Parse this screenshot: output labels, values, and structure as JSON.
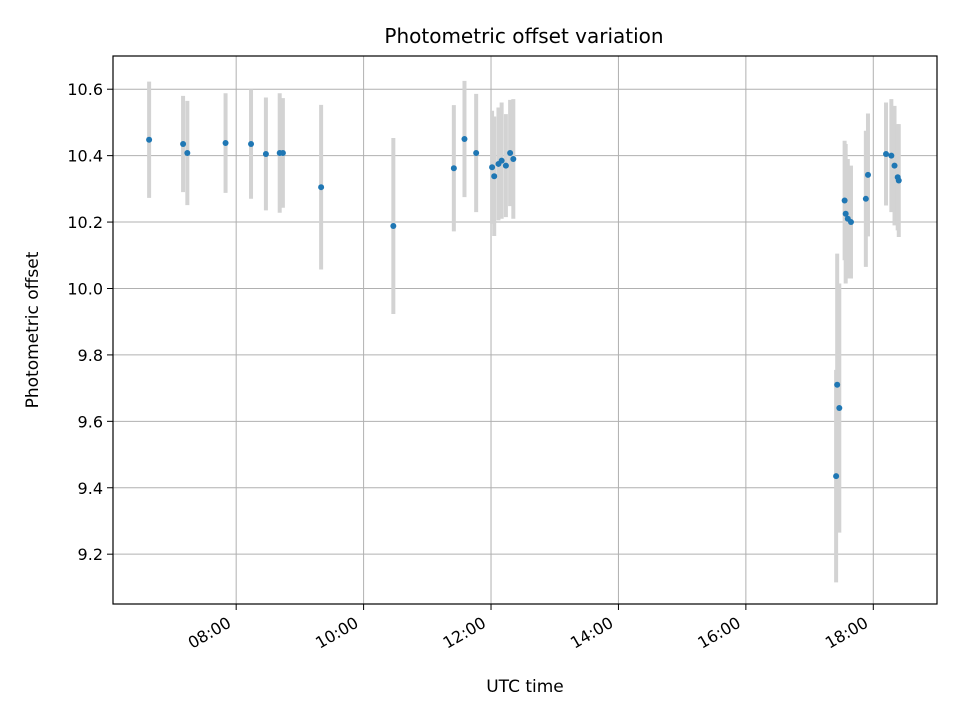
{
  "chart_data": {
    "type": "scatter",
    "title": "Photometric offset variation",
    "xlabel": "UTC time",
    "ylabel": "Photometric offset",
    "xlim": [
      "06:04",
      "19:00"
    ],
    "ylim": [
      9.05,
      10.7
    ],
    "x_ticks": [
      "08:00",
      "10:00",
      "12:00",
      "14:00",
      "16:00",
      "18:00"
    ],
    "y_ticks": [
      9.2,
      9.4,
      9.6,
      9.8,
      10.0,
      10.2,
      10.4,
      10.6
    ],
    "grid": true,
    "error_bars": true,
    "point_color": "#1f77b4",
    "error_color": "#d3d3d3",
    "points": [
      {
        "x": "06:38",
        "y": 10.448,
        "err": 0.175
      },
      {
        "x": "07:10",
        "y": 10.435,
        "err": 0.145
      },
      {
        "x": "07:14",
        "y": 10.408,
        "err": 0.157
      },
      {
        "x": "07:50",
        "y": 10.438,
        "err": 0.15
      },
      {
        "x": "08:14",
        "y": 10.435,
        "err": 0.165
      },
      {
        "x": "08:28",
        "y": 10.405,
        "err": 0.17
      },
      {
        "x": "08:41",
        "y": 10.408,
        "err": 0.18
      },
      {
        "x": "08:44",
        "y": 10.408,
        "err": 0.165
      },
      {
        "x": "09:20",
        "y": 10.305,
        "err": 0.248
      },
      {
        "x": "10:28",
        "y": 10.188,
        "err": 0.265
      },
      {
        "x": "11:25",
        "y": 10.362,
        "err": 0.19
      },
      {
        "x": "11:35",
        "y": 10.45,
        "err": 0.175
      },
      {
        "x": "11:46",
        "y": 10.408,
        "err": 0.178
      },
      {
        "x": "12:01",
        "y": 10.365,
        "err": 0.17
      },
      {
        "x": "12:03",
        "y": 10.338,
        "err": 0.18
      },
      {
        "x": "12:07",
        "y": 10.375,
        "err": 0.17
      },
      {
        "x": "12:10",
        "y": 10.385,
        "err": 0.175
      },
      {
        "x": "12:14",
        "y": 10.37,
        "err": 0.155
      },
      {
        "x": "12:18",
        "y": 10.408,
        "err": 0.16
      },
      {
        "x": "12:21",
        "y": 10.39,
        "err": 0.18
      },
      {
        "x": "17:25",
        "y": 9.435,
        "err": 0.32
      },
      {
        "x": "17:26",
        "y": 9.71,
        "err": 0.395
      },
      {
        "x": "17:28",
        "y": 9.64,
        "err": 0.375
      },
      {
        "x": "17:33",
        "y": 10.265,
        "err": 0.18
      },
      {
        "x": "17:34",
        "y": 10.225,
        "err": 0.21
      },
      {
        "x": "17:36",
        "y": 10.21,
        "err": 0.18
      },
      {
        "x": "17:39",
        "y": 10.2,
        "err": 0.17
      },
      {
        "x": "17:53",
        "y": 10.27,
        "err": 0.205
      },
      {
        "x": "17:55",
        "y": 10.342,
        "err": 0.185
      },
      {
        "x": "18:12",
        "y": 10.405,
        "err": 0.155
      },
      {
        "x": "18:17",
        "y": 10.4,
        "err": 0.17
      },
      {
        "x": "18:20",
        "y": 10.37,
        "err": 0.18
      },
      {
        "x": "18:23",
        "y": 10.335,
        "err": 0.16
      },
      {
        "x": "18:24",
        "y": 10.325,
        "err": 0.17
      }
    ]
  }
}
